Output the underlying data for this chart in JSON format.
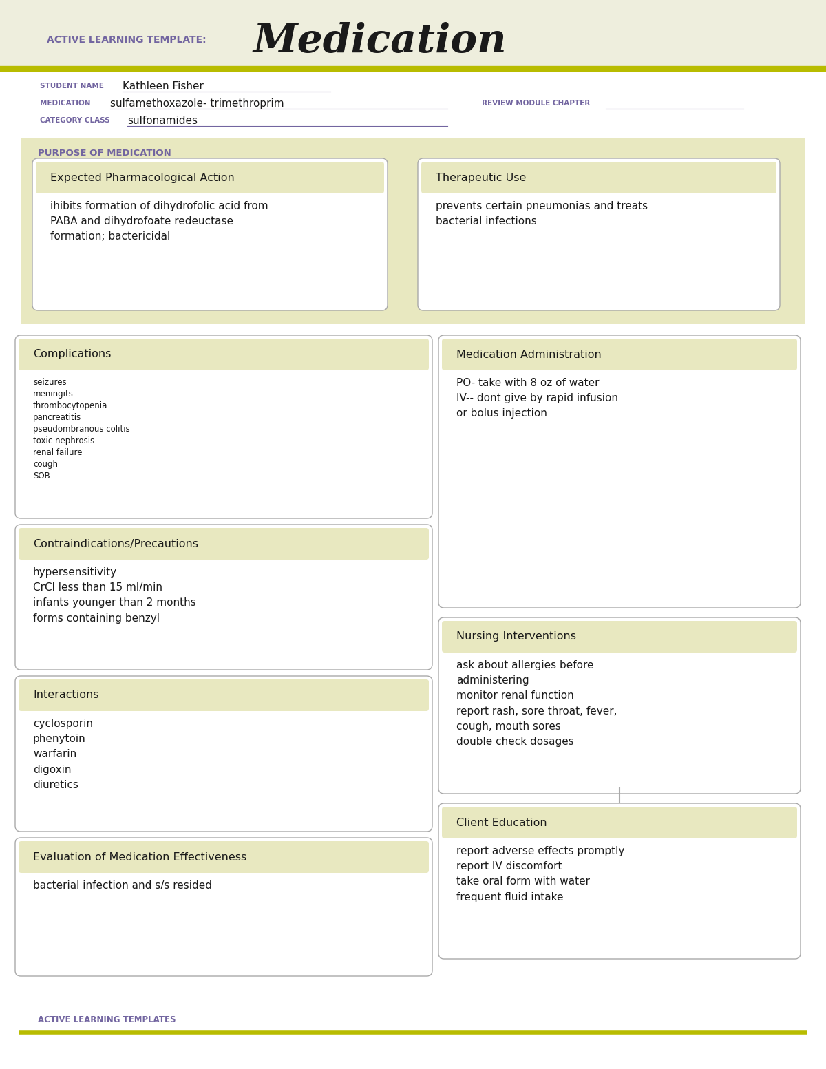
{
  "bg_color": "#eeeedd",
  "white": "#ffffff",
  "olive_line": "#b8bc00",
  "purple_label": "#7265a0",
  "dark_text": "#1a1a1a",
  "box_border": "#aaaaaa",
  "box_bg": "#e8e8c0",
  "title_template": "ACTIVE LEARNING TEMPLATE:",
  "title_main": "Medication",
  "student_label": "STUDENT NAME",
  "student_value": "Kathleen Fisher",
  "medication_label": "MEDICATION",
  "medication_value": "sulfamethoxazole- trimethroprim",
  "review_label": "REVIEW MODULE CHAPTER",
  "category_label": "CATEGORY CLASS",
  "category_value": "sulfonamides",
  "purpose_label": "PURPOSE OF MEDICATION",
  "box1_title": "Expected Pharmacological Action",
  "box1_content": "ihibits formation of dihydrofolic acid from\nPABA and dihydrofoate redeuctase\nformation; bactericidal",
  "box2_title": "Therapeutic Use",
  "box2_content": "prevents certain pneumonias and treats\nbacterial infections",
  "box3_title": "Complications",
  "box3_content": "seizures\nmeningits\nthrombocytopenia\npancreatitis\npseudombranous colitis\ntoxic nephrosis\nrenal failure\ncough\nSOB",
  "box4_title": "Medication Administration",
  "box4_content": "PO- take with 8 oz of water\nIV-- dont give by rapid infusion\nor bolus injection",
  "box5_title": "Contraindications/Precautions",
  "box5_content": "hypersensitivity\nCrCl less than 15 ml/min\ninfants younger than 2 months\nforms containing benzyl",
  "box6_title": "Nursing Interventions",
  "box6_content": "ask about allergies before\nadministering\nmonitor renal function\nreport rash, sore throat, fever,\ncough, mouth sores\ndouble check dosages",
  "box7_title": "Interactions",
  "box7_content": "cyclosporin\nphenytoin\nwarfarin\ndigoxin\ndiuretics",
  "box8_title": "Client Education",
  "box8_content": "report adverse effects promptly\nreport IV discomfort\ntake oral form with water\nfrequent fluid intake",
  "box9_title": "Evaluation of Medication Effectiveness",
  "box9_content": "bacterial infection and s/s resided",
  "footer_text": "ACTIVE LEARNING TEMPLATES"
}
